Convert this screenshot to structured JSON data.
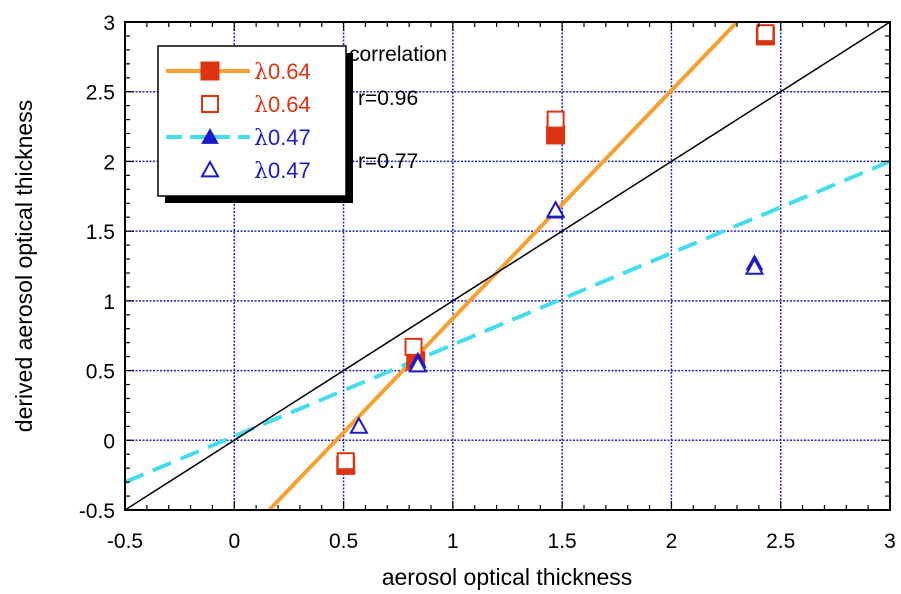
{
  "chart_data": {
    "type": "scatter",
    "title": "",
    "xlabel": "aerosol optical thickness",
    "ylabel": "derived aerosol optical thickness",
    "xlim": [
      -0.5,
      3
    ],
    "ylim": [
      -0.5,
      3
    ],
    "xticks": [
      "-0.5",
      "0",
      "0.5",
      "1",
      "1.5",
      "2",
      "2.5",
      "3"
    ],
    "yticks": [
      "-0.5",
      "0",
      "0.5",
      "1",
      "1.5",
      "2",
      "2.5",
      "3"
    ],
    "x_tick_values": [
      -0.5,
      0,
      0.5,
      1,
      1.5,
      2,
      2.5,
      3
    ],
    "y_tick_values": [
      -0.5,
      0,
      0.5,
      1,
      1.5,
      2,
      2.5,
      3
    ],
    "grid": true,
    "legend_position": "top-left",
    "series": [
      {
        "name": "0.64",
        "color": "#dd3311",
        "marker": "filled-square",
        "points": [
          [
            0.51,
            -0.18
          ],
          [
            0.83,
            0.57
          ],
          [
            1.47,
            2.19
          ],
          [
            2.43,
            2.9
          ]
        ]
      },
      {
        "name": "0.64",
        "color": "#dd3311",
        "marker": "open-square",
        "points": [
          [
            0.51,
            -0.15
          ],
          [
            0.82,
            0.67
          ],
          [
            1.47,
            2.3
          ],
          [
            2.43,
            2.92
          ]
        ]
      },
      {
        "name": "0.47",
        "color": "#1a1acc",
        "marker": "filled-triangle",
        "points": [
          [
            0.84,
            0.57
          ],
          [
            1.47,
            1.64
          ],
          [
            2.38,
            1.27
          ]
        ]
      },
      {
        "name": "0.47",
        "color": "#1a1acc",
        "marker": "open-triangle",
        "points": [
          [
            0.57,
            0.1
          ],
          [
            0.84,
            0.54
          ],
          [
            1.47,
            1.65
          ],
          [
            2.38,
            1.24
          ]
        ]
      }
    ],
    "fit_lines": [
      {
        "series": "λ0.64 fit",
        "color": "#f7a030",
        "style": "solid",
        "from": [
          0.16,
          -0.5
        ],
        "to": [
          2.3,
          3.0
        ]
      },
      {
        "series": "λ0.47 fit",
        "color": "#44ddee",
        "style": "dashed",
        "from": [
          -0.5,
          -0.3
        ],
        "to": [
          3.0,
          2.0
        ]
      },
      {
        "series": "1:1 line",
        "color": "#000000",
        "style": "solid",
        "from": [
          -0.5,
          -0.5
        ],
        "to": [
          3.0,
          3.0
        ]
      }
    ],
    "legend": [
      {
        "symbol": "λ",
        "label": "0.64",
        "color": "#dd3311",
        "marker": "filled-square",
        "line": "#f7a030"
      },
      {
        "symbol": "λ",
        "label": "0.64",
        "color": "#dd3311",
        "marker": "open-square",
        "line": ""
      },
      {
        "symbol": "λ",
        "label": "0.47",
        "color": "#1a1acc",
        "marker": "filled-triangle",
        "line": "#44ddee"
      },
      {
        "symbol": "λ",
        "label": "0.47",
        "color": "#1a1acc",
        "marker": "open-triangle",
        "line": ""
      }
    ],
    "annotations": [
      "correlation",
      "r=0.96",
      "r=0.77"
    ]
  },
  "colors": {
    "grid": "#2222cc",
    "axis": "#000000",
    "background": "#ffffff"
  }
}
